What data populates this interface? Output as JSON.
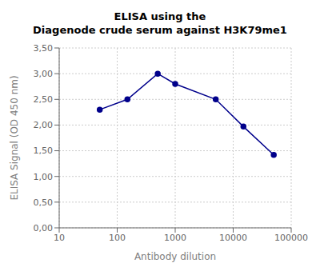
{
  "chart_data": {
    "type": "line",
    "title": "ELISA using the\nDiagenode crude serum against H3K79me1",
    "xlabel": "Antibody dilution",
    "ylabel": "ELISA Signal (OD 450 nm)",
    "x": [
      50,
      150,
      500,
      1000,
      5000,
      15000,
      50000
    ],
    "values": [
      2.3,
      2.5,
      3.0,
      2.8,
      2.5,
      1.97,
      1.42
    ],
    "color": "#00008B",
    "marker": "circle",
    "line_style": "solid",
    "log": "x",
    "xlim": [
      10,
      100000
    ],
    "xticks": [
      10,
      100,
      1000,
      10000,
      100000
    ],
    "ylim": [
      0.0,
      3.5
    ],
    "yticks": [
      {
        "value": 0.0,
        "label": "0,00"
      },
      {
        "value": 0.5,
        "label": "0,50"
      },
      {
        "value": 1.0,
        "label": "1,00"
      },
      {
        "value": 1.5,
        "label": "1,50"
      },
      {
        "value": 2.0,
        "label": "2,00"
      },
      {
        "value": 2.5,
        "label": "2,50"
      },
      {
        "value": 3.0,
        "label": "3,00"
      },
      {
        "value": 3.5,
        "label": "3,50"
      }
    ],
    "grid": true
  }
}
